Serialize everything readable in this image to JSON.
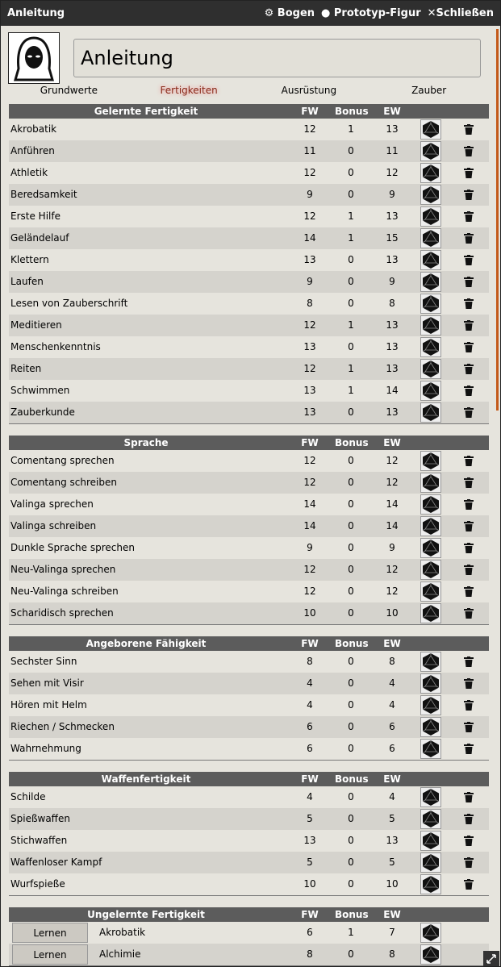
{
  "window": {
    "title": "Anleitung",
    "controls": [
      "Bogen",
      "Prototyp-Figur",
      "Schließen"
    ]
  },
  "header": {
    "name": "Anleitung"
  },
  "tabs": [
    "Grundwerte",
    "Fertigkeiten",
    "Ausrüstung",
    "Zauber"
  ],
  "sections": [
    {
      "title": "Gelernte Fertigkeit",
      "columns": [
        "FW",
        "Bonus",
        "EW"
      ],
      "rows": [
        [
          "Akrobatik",
          12,
          1,
          13
        ],
        [
          "Anführen",
          11,
          0,
          11
        ],
        [
          "Athletik",
          12,
          0,
          12
        ],
        [
          "Beredsamkeit",
          9,
          0,
          9
        ],
        [
          "Erste Hilfe",
          12,
          1,
          13
        ],
        [
          "Geländelauf",
          14,
          1,
          15
        ],
        [
          "Klettern",
          13,
          0,
          13
        ],
        [
          "Laufen",
          9,
          0,
          9
        ],
        [
          "Lesen von Zauberschrift",
          8,
          0,
          8
        ],
        [
          "Meditieren",
          12,
          1,
          13
        ],
        [
          "Menschenkenntnis",
          13,
          0,
          13
        ],
        [
          "Reiten",
          12,
          1,
          13
        ],
        [
          "Schwimmen",
          13,
          1,
          14
        ],
        [
          "Zauberkunde",
          13,
          0,
          13
        ]
      ]
    },
    {
      "title": "Sprache",
      "columns": [
        "FW",
        "Bonus",
        "EW"
      ],
      "rows": [
        [
          "Comentang sprechen",
          12,
          0,
          12
        ],
        [
          "Comentang schreiben",
          12,
          0,
          12
        ],
        [
          "Valinga sprechen",
          14,
          0,
          14
        ],
        [
          "Valinga schreiben",
          14,
          0,
          14
        ],
        [
          "Dunkle Sprache sprechen",
          9,
          0,
          9
        ],
        [
          "Neu-Valinga sprechen",
          12,
          0,
          12
        ],
        [
          "Neu-Valinga schreiben",
          12,
          0,
          12
        ],
        [
          "Scharidisch sprechen",
          10,
          0,
          10
        ]
      ]
    },
    {
      "title": "Angeborene Fähigkeit",
      "columns": [
        "FW",
        "Bonus",
        "EW"
      ],
      "rows": [
        [
          "Sechster Sinn",
          8,
          0,
          8
        ],
        [
          "Sehen mit Visir",
          4,
          0,
          4
        ],
        [
          "Hören mit Helm",
          4,
          0,
          4
        ],
        [
          "Riechen / Schmecken",
          6,
          0,
          6
        ],
        [
          "Wahrnehmung",
          6,
          0,
          6
        ]
      ]
    },
    {
      "title": "Waffenfertigkeit",
      "columns": [
        "FW",
        "Bonus",
        "EW"
      ],
      "rows": [
        [
          "Schilde",
          4,
          0,
          4
        ],
        [
          "Spießwaffen",
          5,
          0,
          5
        ],
        [
          "Stichwaffen",
          13,
          0,
          13
        ],
        [
          "Waffenloser Kampf",
          5,
          0,
          5
        ],
        [
          "Wurfspieße",
          10,
          0,
          10
        ]
      ]
    },
    {
      "title": "Ungelernte Fertigkeit",
      "columns": [
        "FW",
        "Bonus",
        "EW"
      ],
      "button": "Lernen",
      "rows": [
        [
          "Akrobatik",
          6,
          1,
          7
        ],
        [
          "Alchimie",
          8,
          0,
          8
        ]
      ]
    }
  ]
}
